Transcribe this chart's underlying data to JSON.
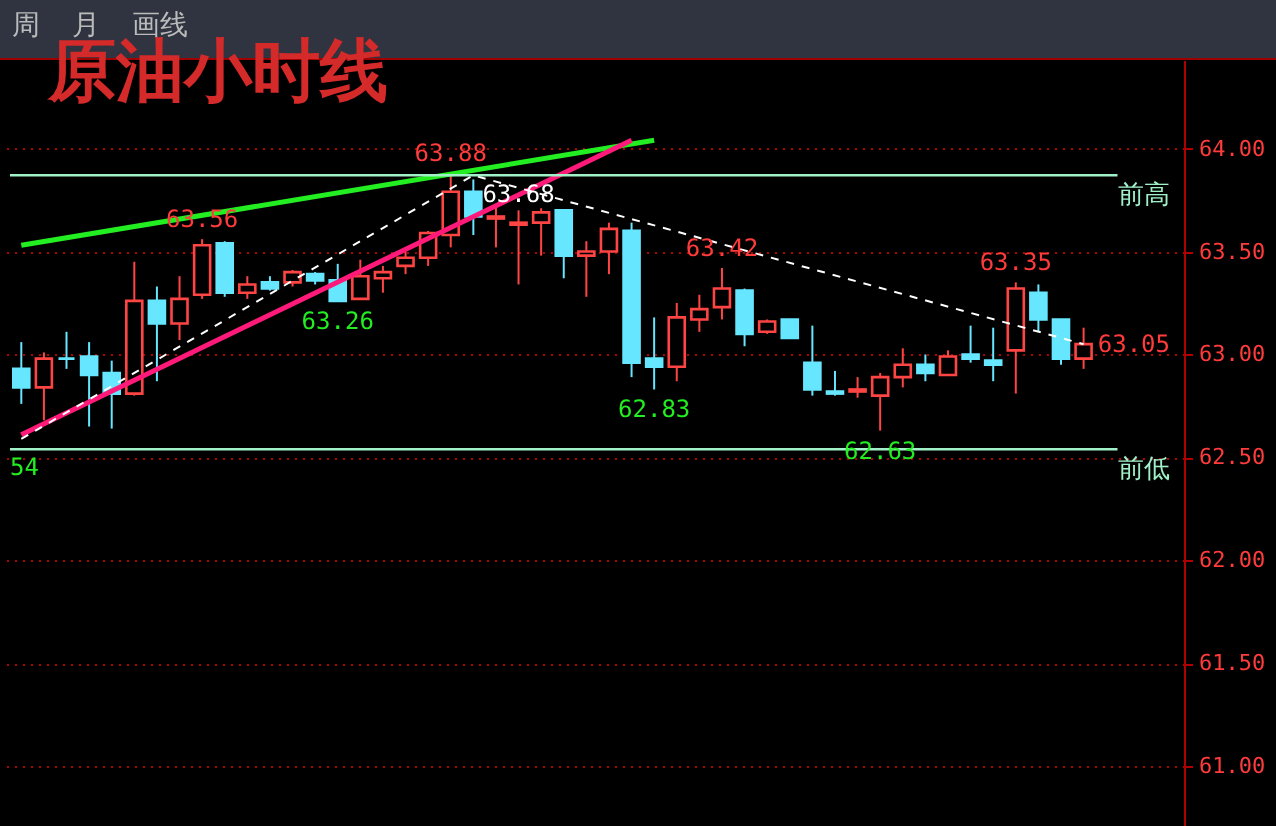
{
  "chart_data": {
    "type": "candlestick",
    "title": "原油小时线",
    "categories": [
      null,
      null,
      null,
      null,
      null,
      null,
      null,
      null,
      null,
      null,
      null,
      null,
      null,
      null,
      null,
      null,
      null,
      null,
      null,
      null,
      null,
      null,
      null,
      null,
      null,
      null,
      null,
      null,
      null,
      null,
      null,
      null,
      null,
      null,
      null,
      null,
      null,
      null,
      null,
      null,
      null,
      null,
      null,
      null,
      null,
      null,
      null,
      null
    ],
    "ohlc": [
      [
        62.93,
        63.06,
        62.76,
        62.84
      ],
      [
        62.84,
        63.01,
        62.68,
        62.98
      ],
      [
        62.98,
        63.11,
        62.93,
        62.98
      ],
      [
        62.99,
        63.06,
        62.65,
        62.9
      ],
      [
        62.91,
        62.97,
        62.64,
        62.81
      ],
      [
        62.81,
        63.45,
        62.8,
        63.26
      ],
      [
        63.26,
        63.33,
        62.87,
        63.15
      ],
      [
        63.15,
        63.38,
        63.07,
        63.27
      ],
      [
        63.29,
        63.56,
        63.27,
        63.53
      ],
      [
        63.54,
        63.55,
        63.28,
        63.3
      ],
      [
        63.3,
        63.38,
        63.27,
        63.34
      ],
      [
        63.35,
        63.38,
        63.31,
        63.32
      ],
      [
        63.35,
        63.41,
        63.33,
        63.4
      ],
      [
        63.39,
        63.4,
        63.34,
        63.36
      ],
      [
        63.36,
        63.44,
        63.26,
        63.26
      ],
      [
        63.27,
        63.46,
        63.27,
        63.38
      ],
      [
        63.37,
        63.43,
        63.3,
        63.4
      ],
      [
        63.43,
        63.5,
        63.39,
        63.47
      ],
      [
        63.47,
        63.6,
        63.43,
        63.59
      ],
      [
        63.58,
        63.88,
        63.52,
        63.79
      ],
      [
        63.79,
        63.85,
        63.58,
        63.67
      ],
      [
        63.66,
        63.72,
        63.52,
        63.67
      ],
      [
        63.63,
        63.7,
        63.34,
        63.64
      ],
      [
        63.64,
        63.71,
        63.48,
        63.69
      ],
      [
        63.7,
        63.7,
        63.37,
        63.48
      ],
      [
        63.48,
        63.55,
        63.28,
        63.5
      ],
      [
        63.5,
        63.64,
        63.39,
        63.61
      ],
      [
        63.6,
        63.64,
        62.89,
        62.96
      ],
      [
        62.98,
        63.18,
        62.83,
        62.94
      ],
      [
        62.94,
        63.25,
        62.87,
        63.18
      ],
      [
        63.17,
        63.29,
        63.11,
        63.22
      ],
      [
        63.23,
        63.42,
        63.17,
        63.32
      ],
      [
        63.31,
        63.32,
        63.04,
        63.1
      ],
      [
        63.11,
        63.17,
        63.1,
        63.16
      ],
      [
        63.17,
        63.17,
        63.08,
        63.08
      ],
      [
        62.96,
        63.14,
        62.8,
        62.83
      ],
      [
        62.82,
        62.92,
        62.8,
        62.81
      ],
      [
        62.82,
        62.89,
        62.79,
        62.83
      ],
      [
        62.8,
        62.91,
        62.63,
        62.89
      ],
      [
        62.89,
        63.03,
        62.84,
        62.95
      ],
      [
        62.95,
        63.0,
        62.87,
        62.91
      ],
      [
        62.9,
        63.02,
        62.9,
        62.99
      ],
      [
        63.0,
        63.14,
        62.96,
        62.98
      ],
      [
        62.97,
        63.13,
        62.87,
        62.95
      ],
      [
        63.02,
        63.35,
        62.81,
        63.32
      ],
      [
        63.3,
        63.34,
        63.11,
        63.17
      ],
      [
        63.17,
        63.17,
        62.95,
        62.98
      ],
      [
        62.98,
        63.13,
        62.93,
        63.05
      ]
    ],
    "colors": [
      "#66e6ff",
      "#ff4444",
      "#66e6ff",
      "#66e6ff",
      "#66e6ff",
      "#ff4444",
      "#66e6ff",
      "#ff4444",
      "#ff4444",
      "#66e6ff",
      "#ff4444",
      "#66e6ff",
      "#ff4444",
      "#66e6ff",
      "#66e6ff",
      "#ff4444",
      "#ff4444",
      "#ff4444",
      "#ff4444",
      "#ff4444",
      "#66e6ff",
      "#ff4444",
      "#ff4444",
      "#ff4444",
      "#66e6ff",
      "#ff4444",
      "#ff4444",
      "#66e6ff",
      "#66e6ff",
      "#ff4444",
      "#ff4444",
      "#ff4444",
      "#66e6ff",
      "#ff4444",
      "#66e6ff",
      "#66e6ff",
      "#66e6ff",
      "#ff4444",
      "#ff4444",
      "#ff4444",
      "#66e6ff",
      "#ff4444",
      "#66e6ff",
      "#66e6ff",
      "#ff4444",
      "#66e6ff",
      "#66e6ff",
      "#ff4444"
    ],
    "series": [
      {
        "type": "line",
        "color": "#22ee22",
        "values": [
          63.53,
          null,
          null,
          null,
          null,
          null,
          null,
          null,
          null,
          null,
          null,
          null,
          null,
          null,
          null,
          null,
          null,
          null,
          null,
          null,
          null,
          null,
          null,
          null,
          null,
          null,
          null,
          null,
          64.04,
          null,
          null,
          null,
          null,
          null,
          null,
          null,
          null,
          null,
          null,
          null,
          null,
          null,
          null,
          null,
          null,
          null,
          null,
          null
        ]
      },
      {
        "type": "line",
        "color": "#ff1a7a",
        "values": [
          62.61,
          null,
          null,
          null,
          null,
          null,
          null,
          null,
          null,
          null,
          null,
          null,
          null,
          null,
          null,
          null,
          null,
          null,
          null,
          null,
          null,
          null,
          null,
          null,
          null,
          null,
          null,
          64.04,
          null,
          null,
          null,
          null,
          null,
          null,
          null,
          null,
          null,
          null,
          null,
          null,
          null,
          null,
          null,
          null,
          null,
          null,
          null,
          null
        ]
      },
      {
        "type": "line",
        "color": "#ffffff",
        "line_style": "dashed",
        "values": [
          62.59,
          null,
          null,
          null,
          null,
          null,
          null,
          null,
          null,
          null,
          null,
          null,
          null,
          null,
          null,
          null,
          null,
          null,
          null,
          null,
          63.87,
          null,
          null,
          null,
          null,
          null,
          null,
          null,
          null,
          null,
          null,
          null,
          null,
          null,
          null,
          null,
          null,
          null,
          null,
          null,
          null,
          null,
          null,
          null,
          null,
          null,
          null,
          63.05
        ]
      }
    ],
    "ylim": [
      60.71,
      64.43
    ],
    "yticks": [
      {
        "value": 61,
        "label": "61.00"
      },
      {
        "value": 61.5,
        "label": "61.50"
      },
      {
        "value": 62,
        "label": "62.00"
      },
      {
        "value": 62.5,
        "label": "62.50"
      },
      {
        "value": 63,
        "label": "63.00"
      },
      {
        "value": 63.5,
        "label": "63.50"
      },
      {
        "value": 64,
        "label": "64.00"
      }
    ],
    "grid": "y",
    "tick_labels": "y",
    "ref_lines": [
      {
        "axis": "y",
        "value": 63.87,
        "label": "前高",
        "color": "#a0f0c8"
      },
      {
        "axis": "y",
        "value": 62.54,
        "label": "前低",
        "color": "#a0f0c8"
      }
    ],
    "annotations": [
      "周",
      "月",
      "画线",
      {
        "text": "63.56",
        "y": 63.56
      },
      {
        "text": "63.88",
        "y": 63.88
      },
      {
        "text": "63.68",
        "y": 63.68
      },
      {
        "text": "63.26",
        "y": 63.26
      },
      {
        "text": "62.83",
        "y": 62.83
      },
      {
        "text": "63.42",
        "y": 63.42
      },
      {
        "text": "63.35",
        "y": 63.35
      },
      {
        "text": "62.63",
        "y": 62.63
      },
      {
        "text": "54",
        "y": 62.54
      },
      "63.05"
    ]
  }
}
